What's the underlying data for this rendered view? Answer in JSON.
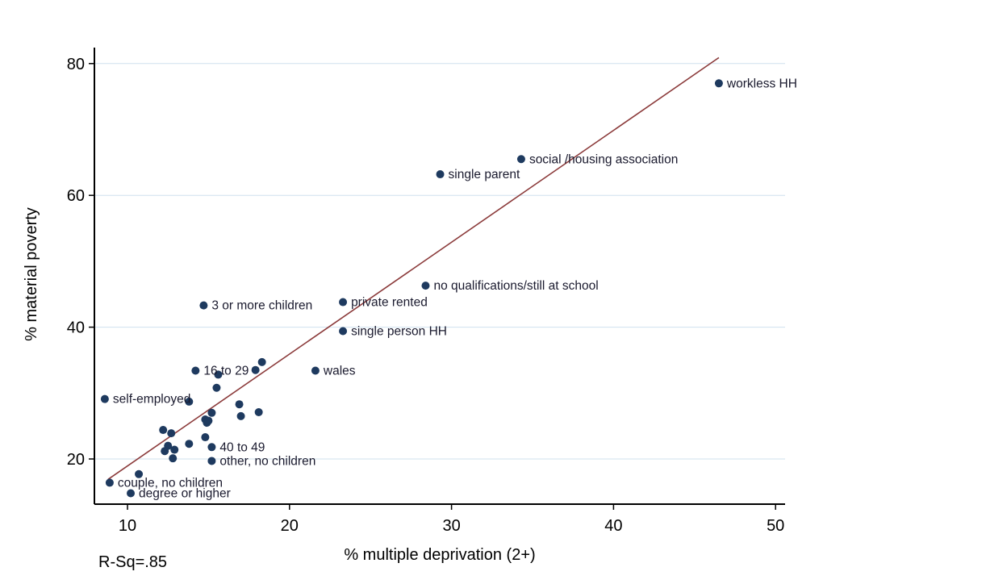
{
  "chart_data": {
    "type": "scatter",
    "title": "",
    "xlabel": "% multiple deprivation (2+)",
    "ylabel": "% material poverty",
    "xlim": [
      8.2,
      50.6
    ],
    "ylim": [
      13.5,
      82.5
    ],
    "xticks": [
      "10",
      "20",
      "30",
      "40",
      "50"
    ],
    "yticks": [
      "20",
      "40",
      "60",
      "80"
    ],
    "xtick_values": [
      10,
      20,
      30,
      40,
      50
    ],
    "ytick_values": [
      20,
      40,
      60,
      80
    ],
    "grid": "horizontal",
    "note": "R-Sq=.85",
    "colors": {
      "point": "#1e3a5f",
      "fit_line": "#8b3a3a",
      "grid": "#cfe0ee"
    },
    "fit_line": {
      "x": [
        8.8,
        46.5
      ],
      "y": [
        16.9,
        80.9
      ]
    },
    "points": [
      {
        "x": 46.5,
        "y": 77.0,
        "label": "workless HH"
      },
      {
        "x": 34.3,
        "y": 65.5,
        "label": "social /housing association"
      },
      {
        "x": 29.3,
        "y": 63.2,
        "label": "single parent"
      },
      {
        "x": 28.4,
        "y": 46.3,
        "label": "no qualifications/still at school"
      },
      {
        "x": 23.3,
        "y": 43.8,
        "label": "private rented"
      },
      {
        "x": 14.7,
        "y": 43.3,
        "label": "3 or more children"
      },
      {
        "x": 23.3,
        "y": 39.4,
        "label": "single person HH"
      },
      {
        "x": 21.6,
        "y": 33.4,
        "label": "wales"
      },
      {
        "x": 14.2,
        "y": 33.4,
        "label": "16 to 29"
      },
      {
        "x": 8.6,
        "y": 29.1,
        "label": "self-employed"
      },
      {
        "x": 15.2,
        "y": 21.8,
        "label": "40 to 49"
      },
      {
        "x": 15.2,
        "y": 19.7,
        "label": "other, no children"
      },
      {
        "x": 8.9,
        "y": 16.4,
        "label": "couple, no children"
      },
      {
        "x": 10.2,
        "y": 14.8,
        "label": "degree or higher"
      },
      {
        "x": 18.3,
        "y": 34.7,
        "label": ""
      },
      {
        "x": 17.9,
        "y": 33.5,
        "label": ""
      },
      {
        "x": 15.6,
        "y": 32.8,
        "label": ""
      },
      {
        "x": 15.5,
        "y": 30.8,
        "label": ""
      },
      {
        "x": 13.8,
        "y": 28.7,
        "label": ""
      },
      {
        "x": 16.9,
        "y": 28.3,
        "label": ""
      },
      {
        "x": 18.1,
        "y": 27.1,
        "label": ""
      },
      {
        "x": 15.2,
        "y": 27.0,
        "label": ""
      },
      {
        "x": 17.0,
        "y": 26.5,
        "label": ""
      },
      {
        "x": 14.8,
        "y": 26.0,
        "label": ""
      },
      {
        "x": 14.9,
        "y": 25.5,
        "label": ""
      },
      {
        "x": 15.0,
        "y": 25.8,
        "label": ""
      },
      {
        "x": 12.2,
        "y": 24.4,
        "label": ""
      },
      {
        "x": 12.7,
        "y": 23.9,
        "label": ""
      },
      {
        "x": 14.8,
        "y": 23.3,
        "label": ""
      },
      {
        "x": 13.8,
        "y": 22.3,
        "label": ""
      },
      {
        "x": 12.5,
        "y": 22.0,
        "label": ""
      },
      {
        "x": 12.9,
        "y": 21.4,
        "label": ""
      },
      {
        "x": 12.3,
        "y": 21.2,
        "label": ""
      },
      {
        "x": 12.8,
        "y": 20.1,
        "label": ""
      },
      {
        "x": 10.7,
        "y": 17.7,
        "label": ""
      }
    ]
  }
}
